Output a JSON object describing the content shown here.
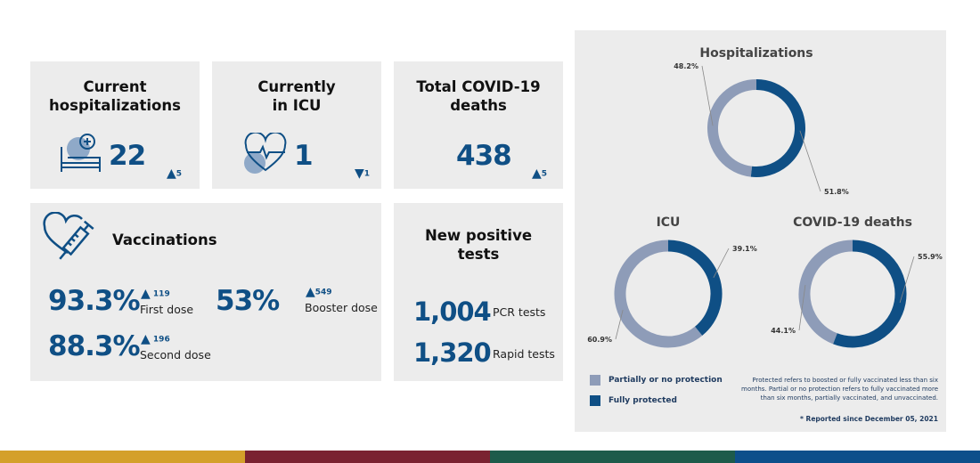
{
  "colors": {
    "primary": "#0f4f85",
    "secondary": "#8e9cb8",
    "panel": "#ececec",
    "stripe": [
      "#d4a02a",
      "#7a2231",
      "#1d5b4b",
      "#0d4f8b"
    ]
  },
  "hospitalizations": {
    "title_line1": "Current",
    "title_line2": "hospitalizations",
    "value": "22",
    "delta": "5",
    "direction": "up",
    "icon": "hospital-bed-icon"
  },
  "icu": {
    "title_line1": "Currently",
    "title_line2": "in ICU",
    "value": "1",
    "delta": "1",
    "direction": "down",
    "icon": "heart-pulse-icon"
  },
  "deaths": {
    "title_line1": "Total COVID-19",
    "title_line2": "deaths",
    "value": "438",
    "delta": "5",
    "direction": "up"
  },
  "vaccinations": {
    "title": "Vaccinations",
    "icon": "heart-syringe-icon",
    "first": {
      "value": "93.3%",
      "delta": "119",
      "label": "First dose"
    },
    "second": {
      "value": "88.3%",
      "delta": "196",
      "label": "Second dose"
    },
    "booster": {
      "value": "53%",
      "delta": "549",
      "label": "Booster dose"
    }
  },
  "tests": {
    "title_line1": "New positive",
    "title_line2": "tests",
    "pcr": {
      "value": "1,004",
      "label": "PCR tests"
    },
    "rapid": {
      "value": "1,320",
      "label": "Rapid tests"
    }
  },
  "chart_data": [
    {
      "type": "pie",
      "title": "Hospitalizations",
      "series": [
        {
          "name": "Partially or no protection",
          "value": 48.2,
          "label": "48.2%"
        },
        {
          "name": "Fully protected",
          "value": 51.8,
          "label": "51.8%"
        }
      ]
    },
    {
      "type": "pie",
      "title": "ICU",
      "series": [
        {
          "name": "Partially or no protection",
          "value": 60.9,
          "label": "60.9%"
        },
        {
          "name": "Fully protected",
          "value": 39.1,
          "label": "39.1%"
        }
      ]
    },
    {
      "type": "pie",
      "title": "COVID-19 deaths",
      "series": [
        {
          "name": "Partially or no protection",
          "value": 44.1,
          "label": "44.1%"
        },
        {
          "name": "Fully protected",
          "value": 55.9,
          "label": "55.9%"
        }
      ]
    }
  ],
  "legend": {
    "partial": "Partially or no protection",
    "full": "Fully protected"
  },
  "note": "Protected refers to boosted or fully vaccinated less than six months. Partial or no protection refers to fully vaccinated more than six months, partially vaccinated, and unvaccinated.",
  "footnote": "* Reported since December 05, 2021"
}
